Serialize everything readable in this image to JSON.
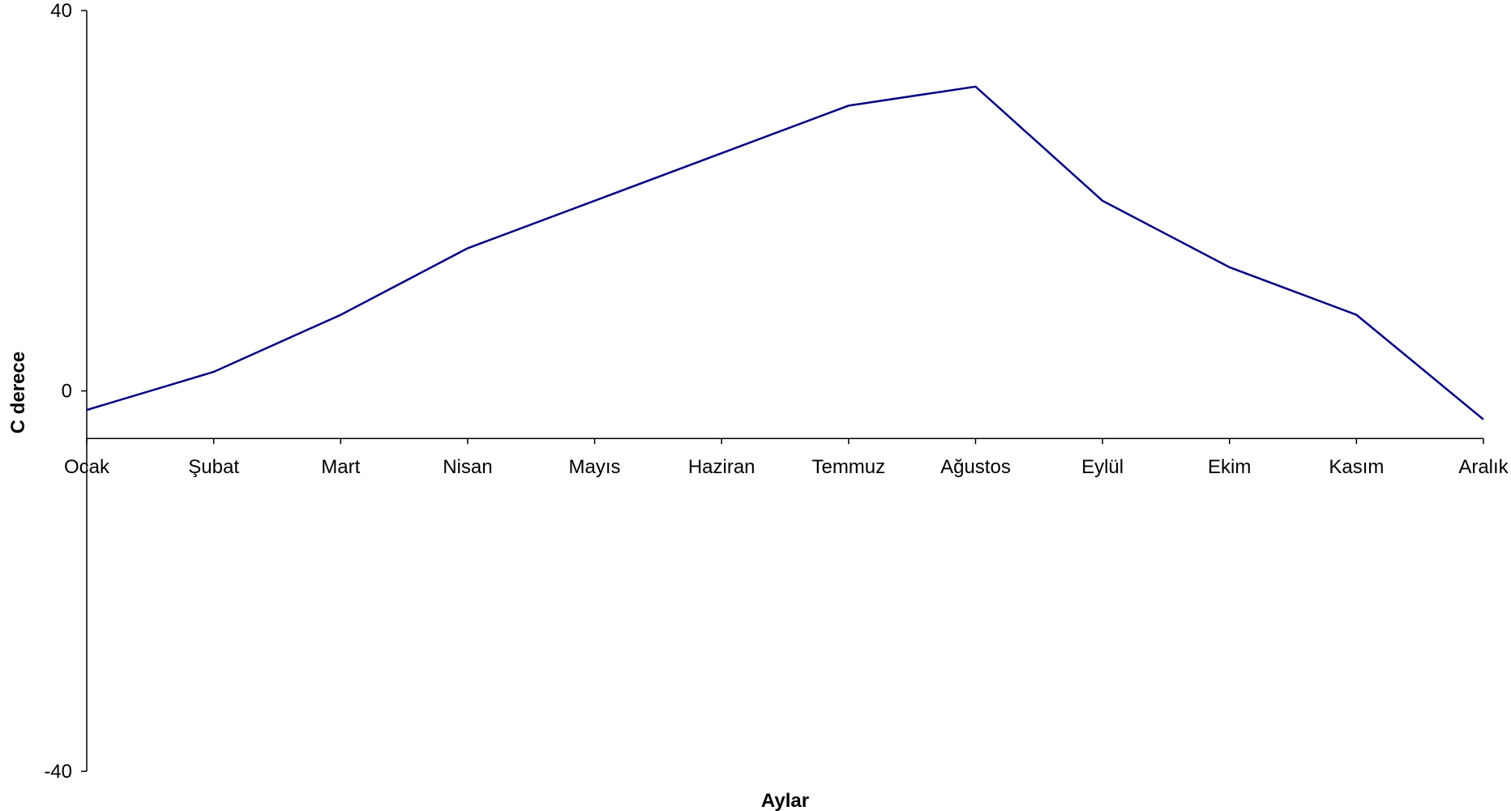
{
  "chart_data": {
    "type": "line",
    "title": "",
    "xlabel": "Aylar",
    "ylabel": "C derece",
    "ylim": [
      -40,
      40
    ],
    "yticks": [
      -40,
      0,
      40
    ],
    "categories": [
      "Ocak",
      "Şubat",
      "Mart",
      "Nisan",
      "Mayıs",
      "Haziran",
      "Temmuz",
      "Ağustos",
      "Eylül",
      "Ekim",
      "Kasım",
      "Aralık"
    ],
    "series": [
      {
        "values": [
          -2,
          2,
          8,
          15,
          20,
          25,
          30,
          32,
          20,
          13,
          8,
          -3
        ],
        "color": "#000080"
      }
    ],
    "x_axis_crosses_at": -5,
    "grid": false,
    "legend": "none"
  }
}
